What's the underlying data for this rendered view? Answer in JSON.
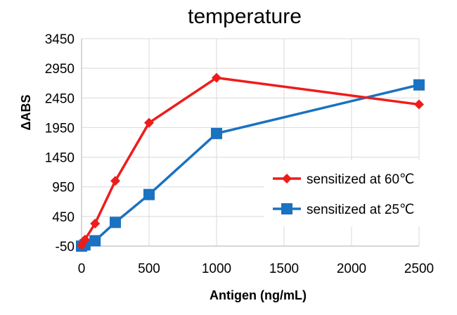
{
  "chart_data": {
    "type": "line",
    "title": "temperature",
    "xlabel": "Antigen (ng/mL)",
    "ylabel": "ΔABS",
    "xlim": [
      0,
      2500
    ],
    "ylim": [
      -50,
      3450
    ],
    "x_ticks": [
      0,
      500,
      1000,
      1500,
      2000,
      2500
    ],
    "y_ticks": [
      -50,
      450,
      950,
      1450,
      1950,
      2450,
      2950,
      3450
    ],
    "x_tick_labels": [
      "0",
      "500",
      "1000",
      "1500",
      "2000",
      "2500"
    ],
    "y_tick_labels": [
      "-50",
      "450",
      "950",
      "1450",
      "1950",
      "2450",
      "2950",
      "3450"
    ],
    "grid": {
      "x": true,
      "y": true
    },
    "legend_position": "right",
    "series": [
      {
        "name": "sensitized at 60℃",
        "color": "#ee1c1c",
        "marker": "diamond",
        "x": [
          0,
          25,
          100,
          250,
          500,
          1000,
          2500
        ],
        "values": [
          -30,
          60,
          330,
          1050,
          2030,
          2790,
          2340
        ]
      },
      {
        "name": "sensitized at 25℃",
        "color": "#1a72c0",
        "marker": "square",
        "x": [
          0,
          25,
          100,
          250,
          500,
          1000,
          2500
        ],
        "values": [
          -50,
          -30,
          40,
          350,
          820,
          1850,
          2670
        ]
      }
    ]
  }
}
